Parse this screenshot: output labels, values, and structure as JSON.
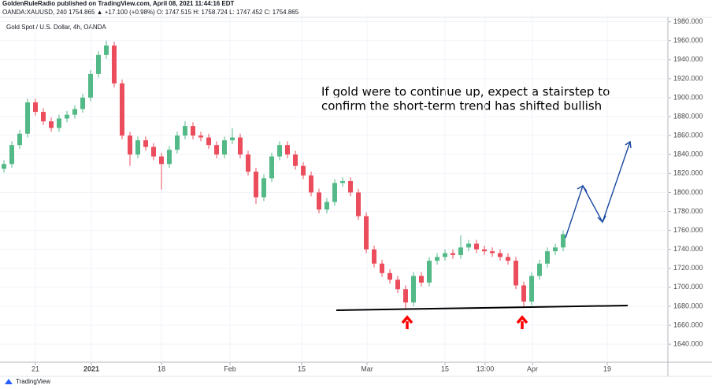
{
  "header": {
    "publisher": "GoldenRuleRadio published on TradingView.com, April 08, 2021 11:44:16 EDT",
    "symbol": "OANDA:XAUUSD, 240  1754.865  ▲ +17.100 (+0.98%)  O: 1747.515  H: 1758.724  L: 1747.452  C: 1754.865"
  },
  "chart_data": {
    "type": "candlestick",
    "legend": "Gold Spot / U.S. Dollar, 4h, OANDA",
    "annotation": [
      "If gold were to continue up, expect a stairstep to",
      "confirm the short-term trend has shifted bullish"
    ],
    "up_color": "#53b987",
    "down_color": "#eb4d5c",
    "open": [
      1825,
      1830,
      1850,
      1862,
      1895,
      1885,
      1875,
      1868,
      1878,
      1882,
      1888,
      1900,
      1925,
      1945,
      1955,
      1915,
      1860,
      1840,
      1855,
      1848,
      1838,
      1830,
      1845,
      1860,
      1870,
      1860,
      1858,
      1850,
      1840,
      1855,
      1858,
      1840,
      1822,
      1795,
      1815,
      1838,
      1850,
      1840,
      1828,
      1818,
      1800,
      1782,
      1790,
      1810,
      1812,
      1800,
      1775,
      1740,
      1725,
      1715,
      1708,
      1698,
      1684,
      1712,
      1705,
      1728,
      1732,
      1736,
      1734,
      1742,
      1746,
      1740,
      1738,
      1736,
      1732,
      1728,
      1702,
      1685,
      1712,
      1725,
      1738,
      1742
    ],
    "high": [
      1834,
      1854,
      1866,
      1899,
      1899,
      1889,
      1879,
      1882,
      1886,
      1892,
      1904,
      1929,
      1949,
      1960,
      1959,
      1919,
      1864,
      1859,
      1859,
      1852,
      1842,
      1849,
      1864,
      1875,
      1874,
      1864,
      1862,
      1854,
      1859,
      1868,
      1862,
      1844,
      1826,
      1819,
      1842,
      1854,
      1854,
      1844,
      1832,
      1822,
      1804,
      1794,
      1814,
      1816,
      1816,
      1804,
      1779,
      1744,
      1729,
      1719,
      1712,
      1702,
      1716,
      1716,
      1732,
      1736,
      1740,
      1740,
      1755,
      1750,
      1750,
      1744,
      1742,
      1740,
      1736,
      1732,
      1706,
      1716,
      1729,
      1742,
      1746,
      1760
    ],
    "low": [
      1821,
      1826,
      1846,
      1858,
      1881,
      1871,
      1864,
      1864,
      1874,
      1878,
      1884,
      1896,
      1921,
      1941,
      1911,
      1856,
      1828,
      1836,
      1844,
      1834,
      1803,
      1826,
      1841,
      1856,
      1856,
      1854,
      1846,
      1836,
      1836,
      1851,
      1836,
      1818,
      1788,
      1791,
      1811,
      1834,
      1836,
      1824,
      1814,
      1796,
      1778,
      1778,
      1786,
      1806,
      1796,
      1771,
      1736,
      1721,
      1711,
      1704,
      1694,
      1677,
      1680,
      1701,
      1701,
      1724,
      1728,
      1730,
      1730,
      1738,
      1736,
      1734,
      1732,
      1728,
      1724,
      1698,
      1678,
      1681,
      1708,
      1721,
      1734,
      1738
    ],
    "close": [
      1830,
      1850,
      1862,
      1895,
      1885,
      1875,
      1868,
      1878,
      1882,
      1888,
      1900,
      1925,
      1945,
      1955,
      1915,
      1860,
      1840,
      1855,
      1848,
      1838,
      1830,
      1845,
      1860,
      1870,
      1860,
      1858,
      1850,
      1840,
      1855,
      1858,
      1840,
      1822,
      1795,
      1815,
      1838,
      1850,
      1840,
      1828,
      1818,
      1800,
      1782,
      1790,
      1810,
      1812,
      1800,
      1775,
      1740,
      1725,
      1715,
      1708,
      1698,
      1684,
      1712,
      1705,
      1728,
      1732,
      1736,
      1734,
      1742,
      1746,
      1740,
      1738,
      1736,
      1732,
      1728,
      1702,
      1685,
      1712,
      1725,
      1738,
      1742,
      1756
    ],
    "xlim": [
      -0.5,
      84.3
    ],
    "xticks": [
      {
        "value": 4,
        "label": "21"
      },
      {
        "value": 11.1,
        "label": "2021"
      },
      {
        "value": 20,
        "label": "18"
      },
      {
        "value": 28.7,
        "label": "Feb"
      },
      {
        "value": 37.8,
        "label": "15"
      },
      {
        "value": 46.1,
        "label": "Mar"
      },
      {
        "value": 56,
        "label": "15"
      },
      {
        "value": 61.1,
        "label": "13:00"
      },
      {
        "value": 67.1,
        "label": "Apr"
      },
      {
        "value": 76.6,
        "label": "19"
      }
    ],
    "ylim": [
      1621,
      1988
    ],
    "yticks": [
      {
        "value": 1640,
        "label": "1640.000"
      },
      {
        "value": 1660,
        "label": "1660.000"
      },
      {
        "value": 1680,
        "label": "1680.000"
      },
      {
        "value": 1700,
        "label": "1700.000"
      },
      {
        "value": 1720,
        "label": "1720.000"
      },
      {
        "value": 1740,
        "label": "1740.000"
      },
      {
        "value": 1760,
        "label": "1760.000"
      },
      {
        "value": 1780,
        "label": "1780.000"
      },
      {
        "value": 1800,
        "label": "1800.000"
      },
      {
        "value": 1820,
        "label": "1820.000"
      },
      {
        "value": 1840,
        "label": "1840.000"
      },
      {
        "value": 1860,
        "label": "1860.000"
      },
      {
        "value": 1880,
        "label": "1880.000"
      },
      {
        "value": 1900,
        "label": "1900.000"
      },
      {
        "value": 1920,
        "label": "1920.000"
      },
      {
        "value": 1940,
        "label": "1940.000"
      },
      {
        "value": 1960,
        "label": "1960.000"
      },
      {
        "value": 1980,
        "label": "1980.000"
      }
    ]
  },
  "footer": "TradingView"
}
